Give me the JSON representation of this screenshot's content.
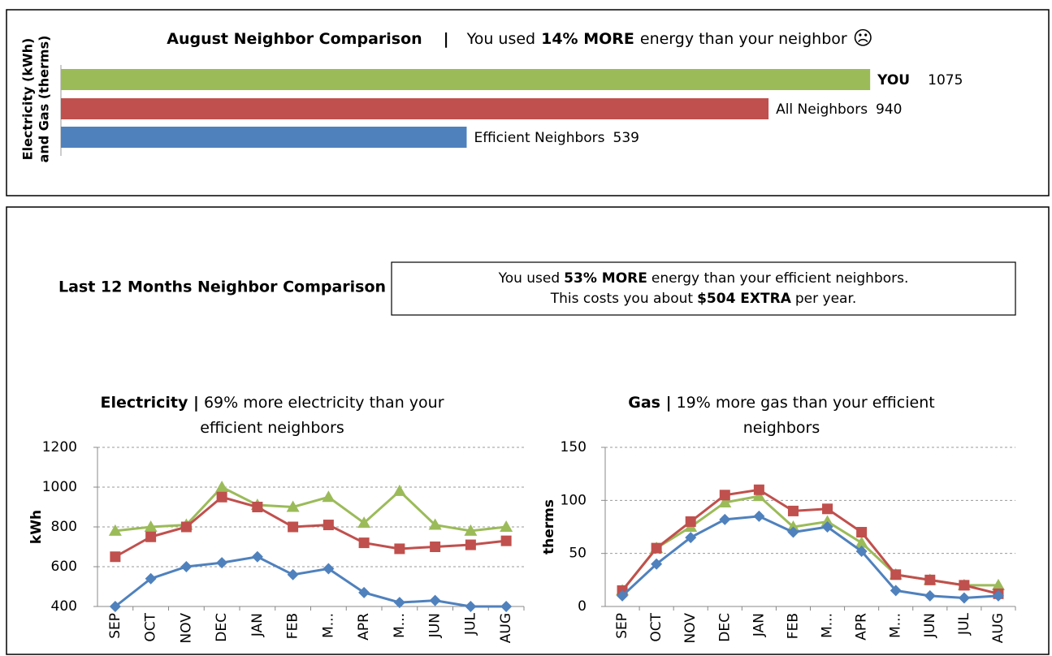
{
  "chart_data": [
    {
      "type": "hbar",
      "title": "August Neighbor Comparison",
      "separator": "|",
      "subtitle": [
        "You used",
        "14% MORE",
        "energy than your neighbor",
        "☹"
      ],
      "ylabel": [
        "Electricity (kWh)",
        "and Gas (therms)"
      ],
      "categories": [
        "YOU",
        "All Neighbors",
        "Efficient Neighbors"
      ],
      "values": [
        1075,
        940,
        539
      ],
      "colors": [
        "#9bbb59",
        "#c0504d",
        "#4f81bd"
      ],
      "label_bold": [
        true,
        false,
        false
      ],
      "xlim": [
        0,
        1200
      ]
    },
    {
      "type": "line",
      "title": "Electricity |",
      "subtitle": "69% more electricity than your efficient neighbors",
      "ylabel": "kWh",
      "categories": [
        "SEP",
        "OCT",
        "NOV",
        "DEC",
        "JAN",
        "FEB",
        "M...",
        "APR",
        "M...",
        "JUN",
        "JUL",
        "AUG"
      ],
      "series": [
        {
          "color": "#9bbb59",
          "marker": "triangle",
          "values": [
            780,
            800,
            810,
            1000,
            910,
            900,
            950,
            820,
            980,
            810,
            780,
            800
          ]
        },
        {
          "color": "#c0504d",
          "marker": "square",
          "values": [
            650,
            750,
            800,
            950,
            900,
            800,
            810,
            720,
            690,
            700,
            710,
            730
          ]
        },
        {
          "color": "#4f81bd",
          "marker": "diamond",
          "values": [
            400,
            540,
            600,
            620,
            650,
            560,
            590,
            470,
            420,
            430,
            400,
            400
          ]
        }
      ],
      "ylim": [
        400,
        1200
      ],
      "yticks": [
        400,
        600,
        800,
        1000,
        1200
      ],
      "grid": true
    },
    {
      "type": "line",
      "title": "Gas |",
      "subtitle": "19% more gas than your efficient neighbors",
      "ylabel": "therms",
      "categories": [
        "SEP",
        "OCT",
        "NOV",
        "DEC",
        "JAN",
        "FEB",
        "M...",
        "APR",
        "M...",
        "JUN",
        "JUL",
        "AUG"
      ],
      "series": [
        {
          "color": "#9bbb59",
          "marker": "triangle",
          "values": [
            15,
            55,
            75,
            98,
            104,
            75,
            80,
            60,
            30,
            25,
            20,
            20
          ]
        },
        {
          "color": "#c0504d",
          "marker": "square",
          "values": [
            15,
            55,
            80,
            105,
            110,
            90,
            92,
            70,
            30,
            25,
            20,
            12
          ]
        },
        {
          "color": "#4f81bd",
          "marker": "diamond",
          "values": [
            10,
            40,
            65,
            82,
            85,
            70,
            75,
            52,
            15,
            10,
            8,
            10
          ]
        }
      ],
      "ylim": [
        0,
        150
      ],
      "yticks": [
        0,
        50,
        100,
        150
      ],
      "grid": true
    }
  ],
  "summary": {
    "title": "Last 12 Months Neighbor Comparison",
    "line1": [
      "You used",
      "53% MORE",
      "energy than your efficient neighbors."
    ],
    "line2": [
      "This costs you about",
      "$504 EXTRA",
      "per year."
    ]
  }
}
